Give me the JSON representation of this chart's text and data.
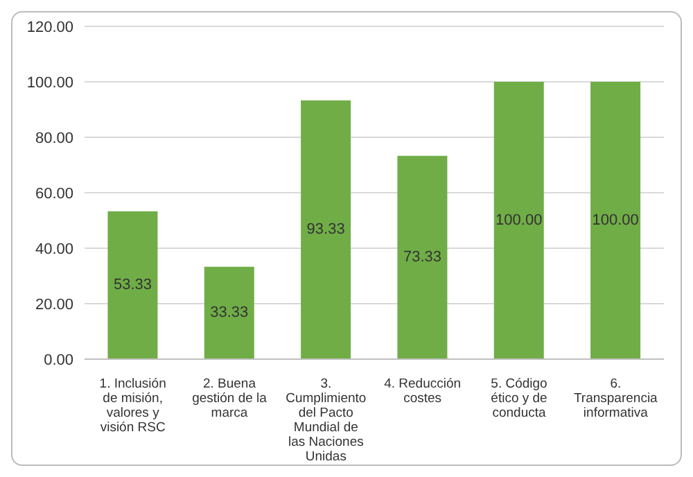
{
  "chart_data": {
    "type": "bar",
    "categories": [
      "1. Inclusión de misión, valores y visión RSC",
      "2. Buena gestión de la marca",
      "3. Cumplimiento del Pacto Mundial de las Naciones Unidas",
      "4. Reducción costes",
      "5. Código ético y de conducta",
      "6. Transparencia informativa"
    ],
    "values": [
      53.33,
      33.33,
      93.33,
      73.33,
      100,
      100
    ],
    "value_labels": [
      "53.33",
      "33.33",
      "93.33",
      "73.33",
      "100.00",
      "100.00"
    ],
    "color": "#70ad47",
    "ylim": [
      0,
      120
    ],
    "yticks": [
      {
        "value": 0,
        "label": "0.00"
      },
      {
        "value": 20,
        "label": "20.00"
      },
      {
        "value": 40,
        "label": "40.00"
      },
      {
        "value": 60,
        "label": "60.00"
      },
      {
        "value": 80,
        "label": "80.00"
      },
      {
        "value": 100,
        "label": "100.00"
      },
      {
        "value": 120,
        "label": "120.00"
      }
    ],
    "grid": "y"
  }
}
